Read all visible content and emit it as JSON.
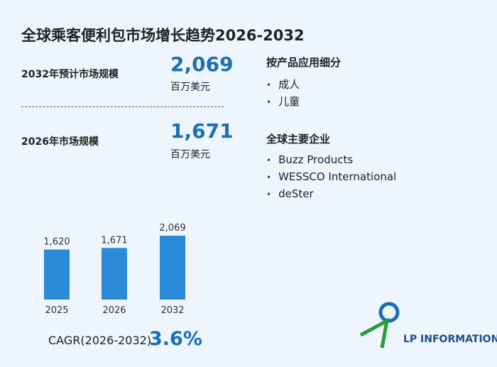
{
  "title": "全球乘客便利包市场增长趋势2026-2032",
  "stats": [
    {
      "label": "2032年预计市场规模",
      "value": "2,069",
      "unit": "百万美元"
    },
    {
      "label": "2026年市场规模",
      "value": "1,671",
      "unit": "百万美元"
    }
  ],
  "segments": {
    "heading": "按产品应用细分",
    "items": [
      "成人",
      "儿童"
    ]
  },
  "companies": {
    "heading": "全球主要企业",
    "items": [
      "Buzz Products",
      "WESSCO International",
      "deSter"
    ]
  },
  "cagr": {
    "label": "CAGR(2026-2032)",
    "value": "3.6%"
  },
  "logo": "LP INFORMATION",
  "chart_data": {
    "type": "bar",
    "categories": [
      "2025",
      "2026",
      "2032"
    ],
    "values": [
      1620,
      1671,
      2069
    ],
    "value_labels": [
      "1,620",
      "1,671",
      "2,069"
    ],
    "color": "#2a8ad8"
  }
}
